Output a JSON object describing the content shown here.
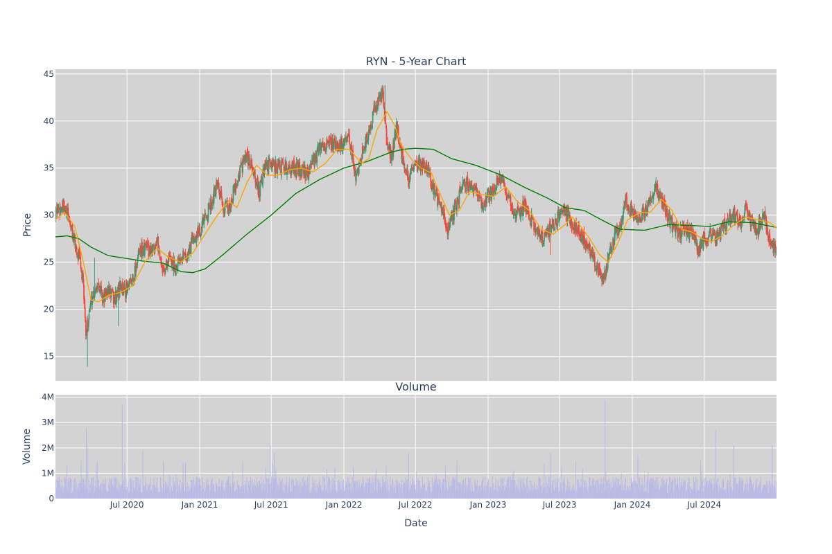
{
  "chart_data": [
    {
      "type": "candlestick",
      "title": "RYN - 5-Year Chart",
      "ylabel": "Price",
      "ylim": [
        12.4,
        45.5
      ],
      "y_ticks": [
        15,
        20,
        25,
        30,
        35,
        40,
        45
      ],
      "xlim": [
        "2020-01-02",
        "2024-12-31"
      ],
      "grid": true,
      "background": "#d3d3d3",
      "colors": {
        "up": "#3d9970",
        "down": "#ff4136",
        "ma_short": "#ffa500",
        "ma_long": "#008000"
      },
      "price_path": [
        [
          "2020-01-02",
          30.5
        ],
        [
          "2020-01-20",
          30.8
        ],
        [
          "2020-02-05",
          29.8
        ],
        [
          "2020-02-20",
          27.0
        ],
        [
          "2020-03-05",
          25.0
        ],
        [
          "2020-03-14",
          22.0
        ],
        [
          "2020-03-20",
          16.8
        ],
        [
          "2020-03-26",
          19.5
        ],
        [
          "2020-04-05",
          21.5
        ],
        [
          "2020-04-20",
          23.0
        ],
        [
          "2020-05-01",
          21.0
        ],
        [
          "2020-05-15",
          22.0
        ],
        [
          "2020-06-01",
          21.0
        ],
        [
          "2020-06-15",
          22.5
        ],
        [
          "2020-07-01",
          22.0
        ],
        [
          "2020-07-15",
          23.0
        ],
        [
          "2020-08-01",
          26.0
        ],
        [
          "2020-08-15",
          26.5
        ],
        [
          "2020-09-01",
          26.0
        ],
        [
          "2020-09-15",
          27.5
        ],
        [
          "2020-10-01",
          24.0
        ],
        [
          "2020-10-15",
          25.5
        ],
        [
          "2020-11-01",
          24.5
        ],
        [
          "2020-11-15",
          26.0
        ],
        [
          "2020-12-01",
          25.5
        ],
        [
          "2020-12-15",
          27.5
        ],
        [
          "2021-01-01",
          28.5
        ],
        [
          "2021-01-15",
          29.5
        ],
        [
          "2021-02-01",
          31.5
        ],
        [
          "2021-02-15",
          33.0
        ],
        [
          "2021-03-01",
          31.0
        ],
        [
          "2021-03-15",
          30.5
        ],
        [
          "2021-04-01",
          33.0
        ],
        [
          "2021-04-15",
          35.0
        ],
        [
          "2021-05-01",
          36.0
        ],
        [
          "2021-05-15",
          35.0
        ],
        [
          "2021-06-01",
          32.5
        ],
        [
          "2021-06-15",
          35.0
        ],
        [
          "2021-07-01",
          35.5
        ],
        [
          "2021-08-01",
          35.0
        ],
        [
          "2021-09-01",
          35.0
        ],
        [
          "2021-10-01",
          34.5
        ],
        [
          "2021-11-01",
          37.0
        ],
        [
          "2021-12-01",
          37.5
        ],
        [
          "2022-01-01",
          37.5
        ],
        [
          "2022-01-15",
          38.0
        ],
        [
          "2022-02-01",
          34.0
        ],
        [
          "2022-02-15",
          36.5
        ],
        [
          "2022-03-01",
          38.0
        ],
        [
          "2022-03-15",
          40.5
        ],
        [
          "2022-04-01",
          42.5
        ],
        [
          "2022-04-10",
          43.0
        ],
        [
          "2022-04-20",
          38.0
        ],
        [
          "2022-05-01",
          36.0
        ],
        [
          "2022-05-15",
          39.5
        ],
        [
          "2022-06-01",
          35.5
        ],
        [
          "2022-06-15",
          34.0
        ],
        [
          "2022-07-01",
          35.0
        ],
        [
          "2022-07-15",
          35.5
        ],
        [
          "2022-08-01",
          35.0
        ],
        [
          "2022-08-15",
          33.0
        ],
        [
          "2022-09-01",
          31.0
        ],
        [
          "2022-09-20",
          28.5
        ],
        [
          "2022-10-05",
          30.0
        ],
        [
          "2022-10-20",
          32.0
        ],
        [
          "2022-11-01",
          33.5
        ],
        [
          "2022-11-15",
          33.0
        ],
        [
          "2022-12-01",
          32.5
        ],
        [
          "2022-12-15",
          31.0
        ],
        [
          "2023-01-01",
          32.0
        ],
        [
          "2023-01-15",
          32.5
        ],
        [
          "2023-02-01",
          34.0
        ],
        [
          "2023-02-15",
          32.5
        ],
        [
          "2023-03-01",
          31.0
        ],
        [
          "2023-03-15",
          30.0
        ],
        [
          "2023-04-01",
          31.0
        ],
        [
          "2023-04-15",
          30.0
        ],
        [
          "2023-05-01",
          28.5
        ],
        [
          "2023-05-15",
          27.5
        ],
        [
          "2023-06-01",
          28.0
        ],
        [
          "2023-06-15",
          29.0
        ],
        [
          "2023-07-01",
          30.0
        ],
        [
          "2023-07-15",
          30.5
        ],
        [
          "2023-08-01",
          29.0
        ],
        [
          "2023-08-15",
          28.5
        ],
        [
          "2023-09-01",
          27.5
        ],
        [
          "2023-09-15",
          26.5
        ],
        [
          "2023-10-01",
          25.0
        ],
        [
          "2023-10-15",
          23.5
        ],
        [
          "2023-10-25",
          23.5
        ],
        [
          "2023-11-01",
          25.5
        ],
        [
          "2023-11-15",
          27.5
        ],
        [
          "2023-12-01",
          29.0
        ],
        [
          "2023-12-15",
          31.5
        ],
        [
          "2024-01-01",
          30.5
        ],
        [
          "2024-01-15",
          29.5
        ],
        [
          "2024-02-01",
          30.5
        ],
        [
          "2024-02-15",
          31.5
        ],
        [
          "2024-03-01",
          33.0
        ],
        [
          "2024-03-15",
          31.5
        ],
        [
          "2024-04-01",
          30.0
        ],
        [
          "2024-04-15",
          28.5
        ],
        [
          "2024-05-01",
          28.0
        ],
        [
          "2024-05-15",
          28.5
        ],
        [
          "2024-06-01",
          28.0
        ],
        [
          "2024-06-15",
          26.5
        ],
        [
          "2024-07-01",
          27.5
        ],
        [
          "2024-07-15",
          28.0
        ],
        [
          "2024-08-01",
          27.5
        ],
        [
          "2024-08-15",
          28.5
        ],
        [
          "2024-09-01",
          29.5
        ],
        [
          "2024-09-15",
          30.0
        ],
        [
          "2024-10-01",
          29.5
        ],
        [
          "2024-10-15",
          30.5
        ],
        [
          "2024-11-01",
          29.0
        ],
        [
          "2024-11-15",
          28.5
        ],
        [
          "2024-12-01",
          30.0
        ],
        [
          "2024-12-15",
          27.0
        ],
        [
          "2024-12-31",
          26.0
        ]
      ],
      "ma_short": [
        [
          "2020-01-02",
          29.5
        ],
        [
          "2020-01-25",
          30.3
        ],
        [
          "2020-02-20",
          28.8
        ],
        [
          "2020-03-10",
          25.5
        ],
        [
          "2020-04-01",
          21.0
        ],
        [
          "2020-04-20",
          20.8
        ],
        [
          "2020-05-15",
          21.5
        ],
        [
          "2020-06-15",
          21.8
        ],
        [
          "2020-07-15",
          22.5
        ],
        [
          "2020-08-15",
          25.0
        ],
        [
          "2020-09-15",
          26.5
        ],
        [
          "2020-10-15",
          25.5
        ],
        [
          "2020-11-15",
          25.0
        ],
        [
          "2020-12-15",
          26.0
        ],
        [
          "2021-01-15",
          28.0
        ],
        [
          "2021-02-15",
          30.0
        ],
        [
          "2021-03-15",
          31.5
        ],
        [
          "2021-04-05",
          30.8
        ],
        [
          "2021-05-01",
          33.5
        ],
        [
          "2021-05-25",
          35.3
        ],
        [
          "2021-06-20",
          34.3
        ],
        [
          "2021-07-15",
          34.2
        ],
        [
          "2021-08-15",
          34.8
        ],
        [
          "2021-09-15",
          35.0
        ],
        [
          "2021-10-15",
          34.6
        ],
        [
          "2021-11-15",
          35.5
        ],
        [
          "2021-12-15",
          37.0
        ],
        [
          "2022-01-15",
          37.0
        ],
        [
          "2022-02-15",
          35.5
        ],
        [
          "2022-03-05",
          36.0
        ],
        [
          "2022-03-25",
          39.0
        ],
        [
          "2022-04-20",
          41.0
        ],
        [
          "2022-05-10",
          39.5
        ],
        [
          "2022-05-25",
          37.5
        ],
        [
          "2022-06-20",
          36.0
        ],
        [
          "2022-07-15",
          35.0
        ],
        [
          "2022-08-10",
          34.5
        ],
        [
          "2022-08-30",
          32.5
        ],
        [
          "2022-09-25",
          30.0
        ],
        [
          "2022-10-20",
          30.5
        ],
        [
          "2022-11-15",
          32.5
        ],
        [
          "2022-12-15",
          32.2
        ],
        [
          "2023-01-15",
          32.0
        ],
        [
          "2023-02-15",
          33.0
        ],
        [
          "2023-03-15",
          31.5
        ],
        [
          "2023-04-15",
          30.5
        ],
        [
          "2023-05-15",
          28.5
        ],
        [
          "2023-06-15",
          28.0
        ],
        [
          "2023-07-15",
          29.0
        ],
        [
          "2023-08-01",
          29.8
        ],
        [
          "2023-08-20",
          29.0
        ],
        [
          "2023-09-15",
          27.5
        ],
        [
          "2023-10-10",
          25.8
        ],
        [
          "2023-11-01",
          25.0
        ],
        [
          "2023-11-25",
          27.0
        ],
        [
          "2023-12-20",
          29.5
        ],
        [
          "2024-01-20",
          30.3
        ],
        [
          "2024-02-15",
          30.3
        ],
        [
          "2024-03-15",
          31.7
        ],
        [
          "2024-04-10",
          30.5
        ],
        [
          "2024-05-05",
          28.5
        ],
        [
          "2024-06-01",
          28.2
        ],
        [
          "2024-06-25",
          27.5
        ],
        [
          "2024-07-20",
          27.2
        ],
        [
          "2024-08-15",
          27.8
        ],
        [
          "2024-09-15",
          29.0
        ],
        [
          "2024-10-15",
          29.8
        ],
        [
          "2024-11-15",
          29.5
        ],
        [
          "2024-12-15",
          29.2
        ],
        [
          "2024-12-31",
          28.6
        ]
      ],
      "ma_long": [
        [
          "2020-01-02",
          27.7
        ],
        [
          "2020-02-01",
          27.8
        ],
        [
          "2020-03-01",
          27.5
        ],
        [
          "2020-04-01",
          26.6
        ],
        [
          "2020-05-15",
          25.7
        ],
        [
          "2020-07-01",
          25.4
        ],
        [
          "2020-08-15",
          25.1
        ],
        [
          "2020-10-01",
          24.9
        ],
        [
          "2020-11-15",
          24.0
        ],
        [
          "2020-12-15",
          23.9
        ],
        [
          "2021-01-15",
          24.3
        ],
        [
          "2021-03-01",
          25.8
        ],
        [
          "2021-05-01",
          28.0
        ],
        [
          "2021-07-01",
          30.0
        ],
        [
          "2021-09-01",
          32.3
        ],
        [
          "2021-11-01",
          33.8
        ],
        [
          "2022-01-01",
          35.0
        ],
        [
          "2022-03-01",
          35.7
        ],
        [
          "2022-05-01",
          36.7
        ],
        [
          "2022-06-01",
          37.0
        ],
        [
          "2022-07-01",
          37.1
        ],
        [
          "2022-08-15",
          37.0
        ],
        [
          "2022-10-01",
          36.0
        ],
        [
          "2022-12-01",
          35.3
        ],
        [
          "2023-02-01",
          34.3
        ],
        [
          "2023-04-01",
          33.0
        ],
        [
          "2023-06-01",
          31.8
        ],
        [
          "2023-07-15",
          30.8
        ],
        [
          "2023-09-01",
          30.5
        ],
        [
          "2023-10-15",
          29.5
        ],
        [
          "2023-12-01",
          28.5
        ],
        [
          "2024-02-01",
          28.4
        ],
        [
          "2024-04-01",
          29.0
        ],
        [
          "2024-06-01",
          28.9
        ],
        [
          "2024-07-15",
          28.8
        ],
        [
          "2024-09-01",
          29.3
        ],
        [
          "2024-11-01",
          29.2
        ],
        [
          "2024-12-31",
          28.7
        ]
      ],
      "spikes": [
        [
          "2020-03-23",
          13.9
        ],
        [
          "2020-03-18",
          20.5
        ],
        [
          "2020-04-10",
          25.5
        ],
        [
          "2020-06-10",
          18.2
        ],
        [
          "2022-04-15",
          43.8
        ],
        [
          "2023-06-08",
          25.8
        ],
        [
          "2023-10-25",
          22.8
        ],
        [
          "2024-12-28",
          25.5
        ]
      ]
    },
    {
      "type": "bar",
      "title": "Volume",
      "xlabel": "Date",
      "ylabel": "Volume",
      "ylim": [
        0,
        4100000
      ],
      "y_ticks": [
        0,
        1000000,
        2000000,
        3000000,
        4000000
      ],
      "y_tick_labels": [
        "0",
        "1M",
        "2M",
        "3M",
        "4M"
      ],
      "color": "#b9b9e8",
      "baseline_volume": 600000,
      "spikes": [
        [
          "2020-03-20",
          2800000
        ],
        [
          "2020-03-25",
          2000000
        ],
        [
          "2020-04-15",
          1300000
        ],
        [
          "2020-06-20",
          3700000
        ],
        [
          "2020-06-25",
          1400000
        ],
        [
          "2020-08-10",
          1900000
        ],
        [
          "2020-10-01",
          1500000
        ],
        [
          "2020-11-20",
          1400000
        ],
        [
          "2021-06-30",
          2100000
        ],
        [
          "2021-07-10",
          1800000
        ],
        [
          "2021-04-20",
          1500000
        ],
        [
          "2022-06-15",
          1800000
        ],
        [
          "2022-09-15",
          1300000
        ],
        [
          "2023-03-05",
          1000000
        ],
        [
          "2023-06-08",
          1800000
        ],
        [
          "2023-10-25",
          3900000
        ],
        [
          "2024-01-15",
          1700000
        ],
        [
          "2024-07-30",
          2700000
        ],
        [
          "2024-09-15",
          2100000
        ],
        [
          "2024-12-20",
          2100000
        ]
      ],
      "x_tick_labels": [
        "Jul 2020",
        "Jan 2021",
        "Jul 2021",
        "Jan 2022",
        "Jul 2022",
        "Jan 2023",
        "Jul 2023",
        "Jan 2024",
        "Jul 2024"
      ],
      "x_tick_dates": [
        "2020-07-01",
        "2021-01-01",
        "2021-07-01",
        "2022-01-01",
        "2022-07-01",
        "2023-01-01",
        "2023-07-01",
        "2024-01-01",
        "2024-07-01"
      ]
    }
  ]
}
